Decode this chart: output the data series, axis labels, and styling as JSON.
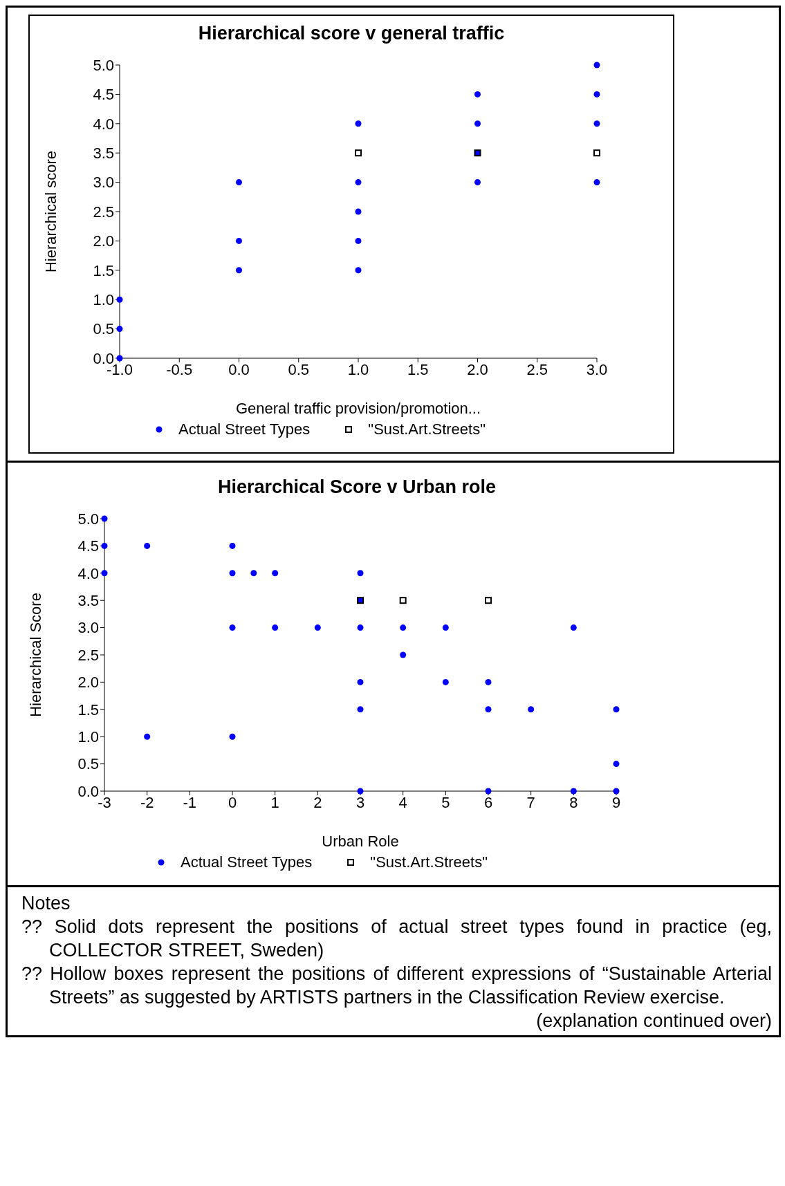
{
  "chart_data": [
    {
      "type": "scatter",
      "title": "Hierarchical score v general traffic",
      "xlabel": "General traffic provision/promotion...",
      "ylabel": "Hierarchical score",
      "xlim": [
        -1,
        3
      ],
      "xticks": [
        {
          "value": -1,
          "label": "-1.0"
        },
        {
          "value": -0.5,
          "label": "-0.5"
        },
        {
          "value": 0,
          "label": "0.0"
        },
        {
          "value": 0.5,
          "label": "0.5"
        },
        {
          "value": 1,
          "label": "1.0"
        },
        {
          "value": 1.5,
          "label": "1.5"
        },
        {
          "value": 2,
          "label": "2.0"
        },
        {
          "value": 2.5,
          "label": "2.5"
        },
        {
          "value": 3,
          "label": "3.0"
        }
      ],
      "ylim": [
        0,
        5
      ],
      "yticks": [
        {
          "value": 0,
          "label": "0.0"
        },
        {
          "value": 0.5,
          "label": "0.5"
        },
        {
          "value": 1,
          "label": "1.0"
        },
        {
          "value": 1.5,
          "label": "1.5"
        },
        {
          "value": 2,
          "label": "2.0"
        },
        {
          "value": 2.5,
          "label": "2.5"
        },
        {
          "value": 3,
          "label": "3.0"
        },
        {
          "value": 3.5,
          "label": "3.5"
        },
        {
          "value": 4,
          "label": "4.0"
        },
        {
          "value": 4.5,
          "label": "4.5"
        },
        {
          "value": 5,
          "label": "5.0"
        }
      ],
      "grid": false,
      "legend": "bottom",
      "series": [
        {
          "name": "Actual Street Types",
          "color": "#0000ff",
          "marker": "circle",
          "x": [
            -1,
            -1,
            -1,
            0,
            0,
            0,
            1,
            1,
            1,
            1,
            1,
            2,
            2,
            2,
            2,
            3,
            3,
            3,
            3
          ],
          "values": [
            0,
            0.5,
            1,
            1.5,
            2,
            3,
            1.5,
            2,
            2.5,
            3,
            4,
            3,
            3.5,
            4,
            4.5,
            3,
            4,
            4.5,
            5
          ]
        },
        {
          "name": "\"Sust.Art.Streets\"",
          "color": "#000000",
          "marker": "square",
          "x": [
            1,
            2,
            3
          ],
          "values": [
            3.5,
            3.5,
            3.5
          ]
        }
      ]
    },
    {
      "type": "scatter",
      "title": "Hierarchical Score v Urban role",
      "xlabel": "Urban Role",
      "ylabel": "Hierarchical Score",
      "xlim": [
        -3,
        9
      ],
      "xticks": [
        -3,
        -2,
        -1,
        0,
        1,
        2,
        3,
        4,
        5,
        6,
        7,
        8,
        9
      ],
      "ylim": [
        0,
        5
      ],
      "yticks": [
        {
          "value": 0,
          "label": "0.0"
        },
        {
          "value": 0.5,
          "label": "0.5"
        },
        {
          "value": 1,
          "label": "1.0"
        },
        {
          "value": 1.5,
          "label": "1.5"
        },
        {
          "value": 2,
          "label": "2.0"
        },
        {
          "value": 2.5,
          "label": "2.5"
        },
        {
          "value": 3,
          "label": "3.0"
        },
        {
          "value": 3.5,
          "label": "3.5"
        },
        {
          "value": 4,
          "label": "4.0"
        },
        {
          "value": 4.5,
          "label": "4.5"
        },
        {
          "value": 5,
          "label": "5.0"
        }
      ],
      "grid": false,
      "legend": "bottom",
      "series": [
        {
          "name": "Actual Street Types",
          "color": "#0000ff",
          "marker": "circle",
          "x": [
            -3,
            -3,
            -3,
            -2,
            -2,
            0,
            0,
            0,
            0,
            0.5,
            1,
            1,
            2,
            3,
            3,
            3,
            3,
            3,
            3,
            4,
            4,
            5,
            5,
            6,
            6,
            6,
            7,
            8,
            8,
            9,
            9,
            9
          ],
          "values": [
            4,
            4.5,
            5,
            1,
            4.5,
            1,
            3,
            4,
            4.5,
            4,
            3,
            4,
            3,
            0,
            1.5,
            2,
            3,
            3.5,
            4,
            2.5,
            3,
            2,
            3,
            0,
            1.5,
            2,
            1.5,
            0,
            3,
            0,
            0.5,
            1.5
          ]
        },
        {
          "name": "\"Sust.Art.Streets\"",
          "color": "#000000",
          "marker": "square",
          "x": [
            3,
            4,
            6
          ],
          "values": [
            3.5,
            3.5,
            3.5
          ]
        }
      ],
      "annotations": [
        "Notes",
        "?? Solid dots represent the positions of actual street types found in practice (eg, COLLECTOR STREET, Sweden)",
        "?? Hollow boxes represent the positions of different expressions of “Sustainable Arterial Streets” as suggested by ARTISTS partners in the Classification Review exercise.",
        "(explanation continued over)"
      ]
    }
  ]
}
